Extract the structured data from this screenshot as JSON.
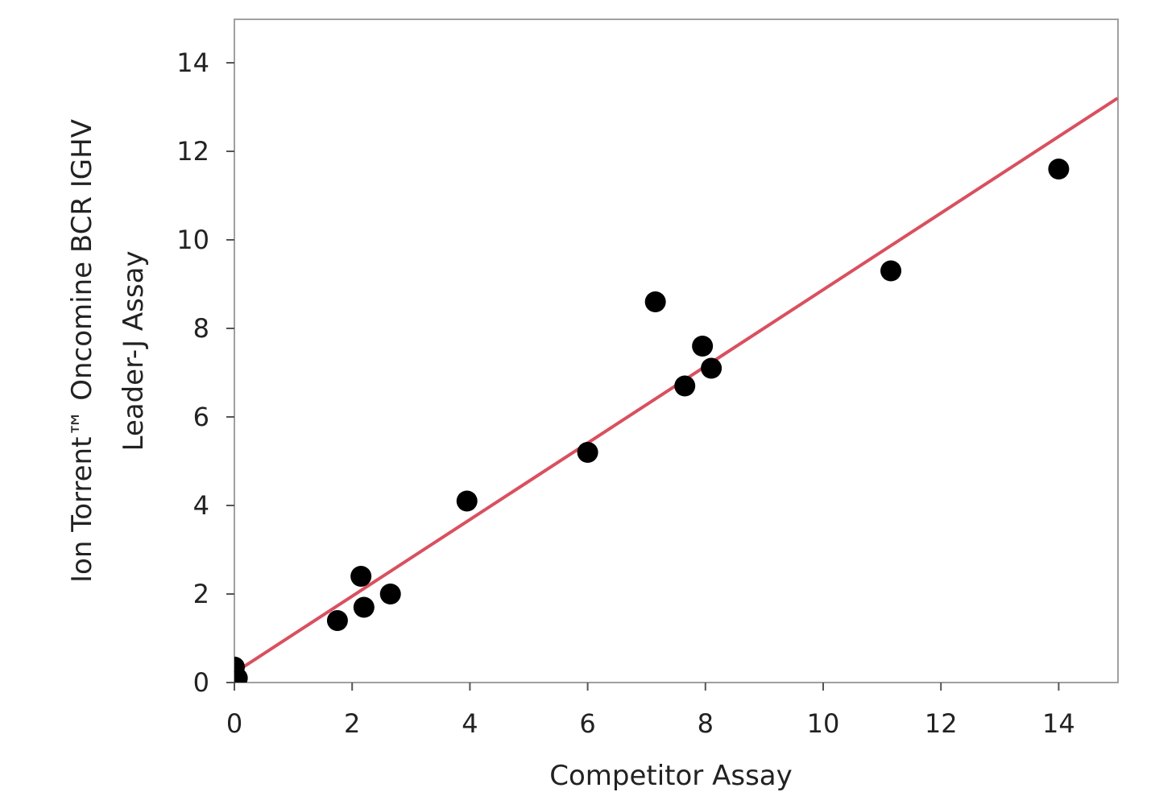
{
  "chart_data": {
    "type": "scatter",
    "xlabel": "Competitor Assay",
    "ylabel_line1": "Ion Torrent™ Oncomine BCR IGHV",
    "ylabel_line2": "Leader-J Assay",
    "xlim": [
      0,
      15
    ],
    "ylim": [
      0,
      15
    ],
    "x_ticks": [
      "0",
      "2",
      "4",
      "6",
      "8",
      "10",
      "12",
      "14"
    ],
    "y_ticks": [
      "0",
      "2",
      "4",
      "6",
      "8",
      "10",
      "12",
      "14"
    ],
    "grid": false,
    "series": [
      {
        "points": [
          {
            "x": 0.0,
            "y": 0.35
          },
          {
            "x": 0.05,
            "y": 0.1
          },
          {
            "x": 1.75,
            "y": 1.4
          },
          {
            "x": 2.15,
            "y": 2.4
          },
          {
            "x": 2.2,
            "y": 1.7
          },
          {
            "x": 2.65,
            "y": 2.0
          },
          {
            "x": 3.95,
            "y": 4.1
          },
          {
            "x": 6.0,
            "y": 5.2
          },
          {
            "x": 7.15,
            "y": 8.6
          },
          {
            "x": 7.65,
            "y": 6.7
          },
          {
            "x": 7.95,
            "y": 7.6
          },
          {
            "x": 8.1,
            "y": 7.1
          },
          {
            "x": 11.15,
            "y": 9.3
          },
          {
            "x": 14.0,
            "y": 11.6
          }
        ]
      }
    ],
    "fit_line": {
      "x": [
        0,
        15
      ],
      "y": [
        0.22,
        13.2
      ]
    },
    "colors": {
      "points": "#000000",
      "fit_line": "#d9505f",
      "frame": "#a0a0a0"
    }
  }
}
